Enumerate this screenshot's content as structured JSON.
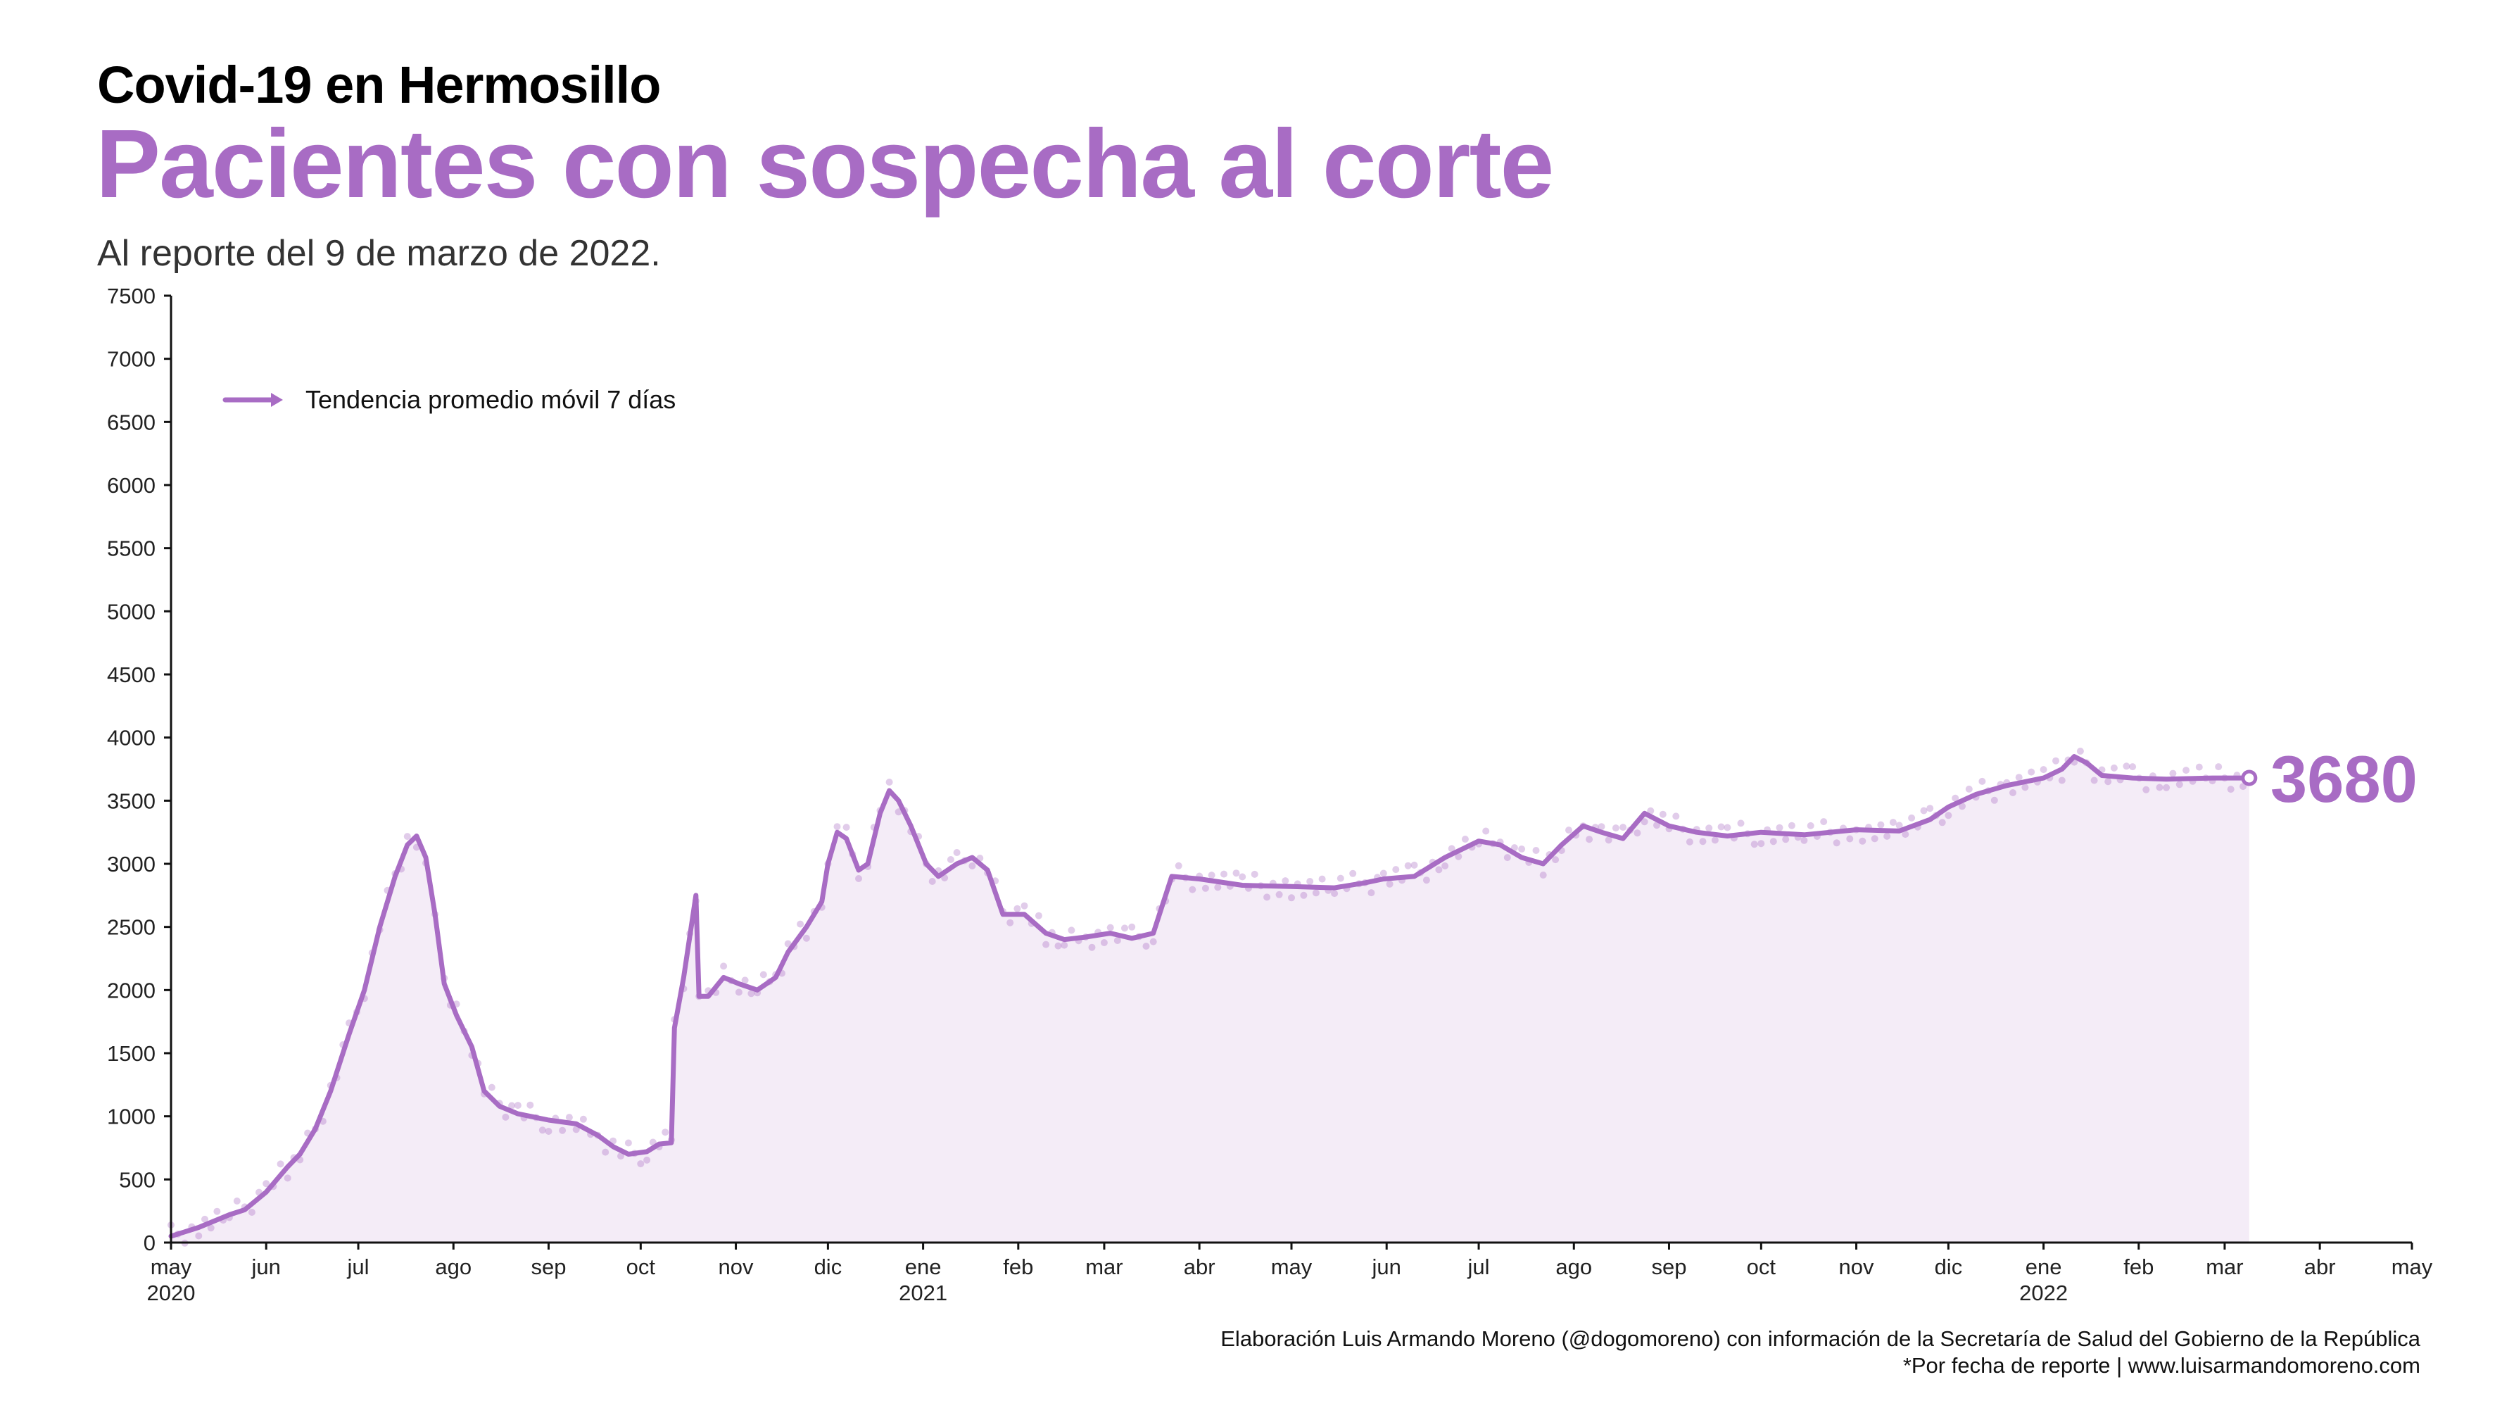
{
  "header": {
    "title": "Covid-19 en Hermosillo",
    "subtitle": "Pacientes con sospecha al corte",
    "report_date": "Al reporte del 9 de marzo de 2022."
  },
  "footer": {
    "credit": "Elaboración Luis Armando Moreno (@dogomoreno) con información de la Secretaría de Salud del Gobierno de la República",
    "note": "*Por fecha de reporte | www.luisarmandomoreno.com"
  },
  "colors": {
    "accent": "#a86cc4",
    "fill": "#f4ecf7",
    "axis": "#111111"
  },
  "chart_data": {
    "type": "line",
    "x_unit": "date",
    "ylim": [
      0,
      7500
    ],
    "y_ticks": [
      0,
      500,
      1000,
      1500,
      2000,
      2500,
      3000,
      3500,
      4000,
      4500,
      5000,
      5500,
      6000,
      6500,
      7000,
      7500
    ],
    "xlim": [
      "2020-05-01",
      "2022-05-01"
    ],
    "x_ticks": [
      {
        "date": "2020-05-01",
        "label": "may",
        "year": "2020"
      },
      {
        "date": "2020-06-01",
        "label": "jun"
      },
      {
        "date": "2020-07-01",
        "label": "jul"
      },
      {
        "date": "2020-08-01",
        "label": "ago"
      },
      {
        "date": "2020-09-01",
        "label": "sep"
      },
      {
        "date": "2020-10-01",
        "label": "oct"
      },
      {
        "date": "2020-11-01",
        "label": "nov"
      },
      {
        "date": "2020-12-01",
        "label": "dic"
      },
      {
        "date": "2021-01-01",
        "label": "ene",
        "year": "2021"
      },
      {
        "date": "2021-02-01",
        "label": "feb"
      },
      {
        "date": "2021-03-01",
        "label": "mar"
      },
      {
        "date": "2021-04-01",
        "label": "abr"
      },
      {
        "date": "2021-05-01",
        "label": "may"
      },
      {
        "date": "2021-06-01",
        "label": "jun"
      },
      {
        "date": "2021-07-01",
        "label": "jul"
      },
      {
        "date": "2021-08-01",
        "label": "ago"
      },
      {
        "date": "2021-09-01",
        "label": "sep"
      },
      {
        "date": "2021-10-01",
        "label": "oct"
      },
      {
        "date": "2021-11-01",
        "label": "nov"
      },
      {
        "date": "2021-12-01",
        "label": "dic"
      },
      {
        "date": "2022-01-01",
        "label": "ene",
        "year": "2022"
      },
      {
        "date": "2022-02-01",
        "label": "feb"
      },
      {
        "date": "2022-03-01",
        "label": "mar"
      },
      {
        "date": "2022-04-01",
        "label": "abr"
      },
      {
        "date": "2022-05-01",
        "label": "may"
      }
    ],
    "legend": {
      "label": "Tendencia promedio móvil 7 días",
      "placement": "top-left"
    },
    "last_value": 3680,
    "last_value_label": "3680",
    "series": [
      {
        "name": "Tendencia promedio móvil 7 días",
        "points": [
          [
            "2020-05-01",
            50
          ],
          [
            "2020-05-10",
            120
          ],
          [
            "2020-05-20",
            220
          ],
          [
            "2020-05-25",
            260
          ],
          [
            "2020-06-01",
            400
          ],
          [
            "2020-06-08",
            600
          ],
          [
            "2020-06-12",
            700
          ],
          [
            "2020-06-17",
            900
          ],
          [
            "2020-06-22",
            1200
          ],
          [
            "2020-06-28",
            1650
          ],
          [
            "2020-07-03",
            2000
          ],
          [
            "2020-07-08",
            2500
          ],
          [
            "2020-07-13",
            2900
          ],
          [
            "2020-07-17",
            3150
          ],
          [
            "2020-07-20",
            3220
          ],
          [
            "2020-07-23",
            3050
          ],
          [
            "2020-07-26",
            2600
          ],
          [
            "2020-07-29",
            2050
          ],
          [
            "2020-08-02",
            1800
          ],
          [
            "2020-08-07",
            1550
          ],
          [
            "2020-08-11",
            1200
          ],
          [
            "2020-08-16",
            1080
          ],
          [
            "2020-08-22",
            1020
          ],
          [
            "2020-09-01",
            970
          ],
          [
            "2020-09-10",
            940
          ],
          [
            "2020-09-17",
            850
          ],
          [
            "2020-09-22",
            760
          ],
          [
            "2020-09-27",
            700
          ],
          [
            "2020-10-03",
            720
          ],
          [
            "2020-10-07",
            780
          ],
          [
            "2020-10-11",
            790
          ],
          [
            "2020-10-12",
            1700
          ],
          [
            "2020-10-15",
            2100
          ],
          [
            "2020-10-19",
            2750
          ],
          [
            "2020-10-20",
            1950
          ],
          [
            "2020-10-23",
            1950
          ],
          [
            "2020-10-28",
            2100
          ],
          [
            "2020-11-02",
            2050
          ],
          [
            "2020-11-08",
            2000
          ],
          [
            "2020-11-14",
            2100
          ],
          [
            "2020-11-18",
            2300
          ],
          [
            "2020-11-24",
            2500
          ],
          [
            "2020-11-29",
            2700
          ],
          [
            "2020-12-01",
            3000
          ],
          [
            "2020-12-04",
            3250
          ],
          [
            "2020-12-07",
            3200
          ],
          [
            "2020-12-11",
            2950
          ],
          [
            "2020-12-14",
            3000
          ],
          [
            "2020-12-18",
            3400
          ],
          [
            "2020-12-21",
            3580
          ],
          [
            "2020-12-24",
            3500
          ],
          [
            "2020-12-28",
            3300
          ],
          [
            "2021-01-02",
            3000
          ],
          [
            "2021-01-06",
            2900
          ],
          [
            "2021-01-12",
            3000
          ],
          [
            "2021-01-17",
            3050
          ],
          [
            "2021-01-22",
            2950
          ],
          [
            "2021-01-27",
            2600
          ],
          [
            "2021-02-03",
            2600
          ],
          [
            "2021-02-10",
            2450
          ],
          [
            "2021-02-16",
            2400
          ],
          [
            "2021-02-23",
            2420
          ],
          [
            "2021-03-03",
            2450
          ],
          [
            "2021-03-10",
            2410
          ],
          [
            "2021-03-17",
            2450
          ],
          [
            "2021-03-23",
            2900
          ],
          [
            "2021-04-01",
            2880
          ],
          [
            "2021-04-15",
            2830
          ],
          [
            "2021-05-01",
            2820
          ],
          [
            "2021-05-15",
            2810
          ],
          [
            "2021-05-25",
            2850
          ],
          [
            "2021-05-31",
            2880
          ],
          [
            "2021-06-10",
            2900
          ],
          [
            "2021-06-20",
            3050
          ],
          [
            "2021-07-01",
            3180
          ],
          [
            "2021-07-08",
            3150
          ],
          [
            "2021-07-15",
            3050
          ],
          [
            "2021-07-22",
            3000
          ],
          [
            "2021-07-28",
            3150
          ],
          [
            "2021-08-04",
            3300
          ],
          [
            "2021-08-10",
            3250
          ],
          [
            "2021-08-17",
            3200
          ],
          [
            "2021-08-24",
            3400
          ],
          [
            "2021-09-01",
            3300
          ],
          [
            "2021-09-10",
            3250
          ],
          [
            "2021-09-20",
            3220
          ],
          [
            "2021-10-01",
            3250
          ],
          [
            "2021-10-15",
            3230
          ],
          [
            "2021-11-01",
            3270
          ],
          [
            "2021-11-15",
            3260
          ],
          [
            "2021-11-25",
            3350
          ],
          [
            "2021-12-01",
            3450
          ],
          [
            "2021-12-10",
            3550
          ],
          [
            "2021-12-20",
            3620
          ],
          [
            "2022-01-01",
            3680
          ],
          [
            "2022-01-07",
            3750
          ],
          [
            "2022-01-11",
            3850
          ],
          [
            "2022-01-15",
            3800
          ],
          [
            "2022-01-20",
            3700
          ],
          [
            "2022-01-30",
            3680
          ],
          [
            "2022-02-10",
            3670
          ],
          [
            "2022-02-25",
            3680
          ],
          [
            "2022-03-09",
            3680
          ]
        ]
      }
    ]
  }
}
